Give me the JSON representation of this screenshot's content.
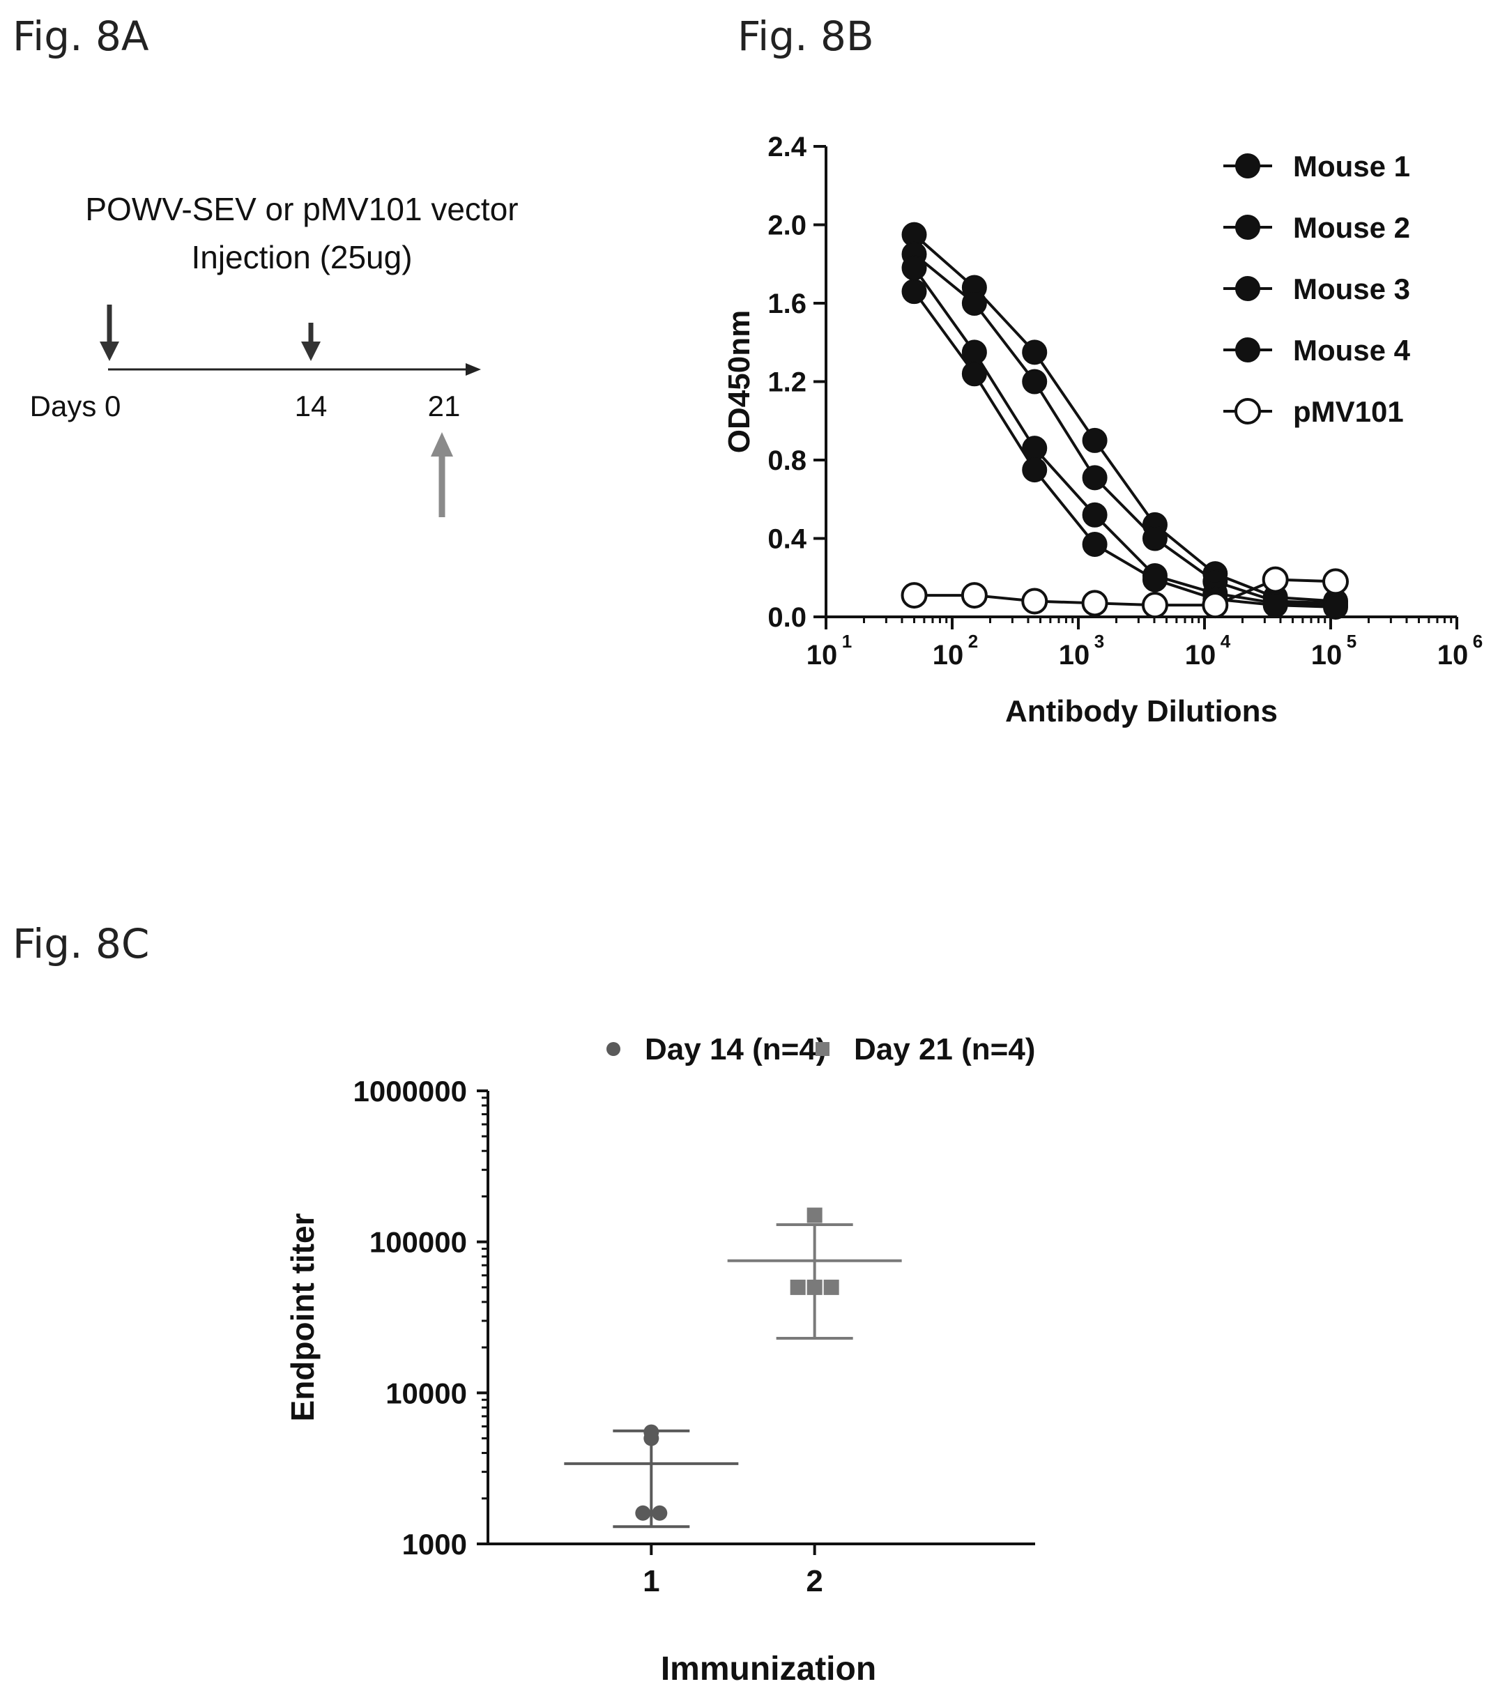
{
  "figure_labels": {
    "a": "Fig. 8A",
    "b": "Fig. 8B",
    "c": "Fig. 8C"
  },
  "panel_a": {
    "title_line1": "POWV-SEV or pMV101 vector",
    "title_line2": "Injection (25ug)",
    "days_label": "Days 0",
    "day_14": "14",
    "day_21": "21",
    "dark_arrow_color": "#333333",
    "grey_arrow_color": "#8a8a8a"
  },
  "chart_data": [
    {
      "type": "line",
      "xlabel": "Antibody Dilutions",
      "ylabel": "OD450nm",
      "xscale": "log",
      "xlim": [
        10,
        1000000
      ],
      "ylim": [
        0,
        2.4
      ],
      "x_tick_bases": [
        "10",
        "10",
        "10",
        "10",
        "10",
        "10"
      ],
      "x_tick_exps": [
        "1",
        "2",
        "3",
        "4",
        "5",
        "6"
      ],
      "y_ticks": [
        "0.0",
        "0.4",
        "0.8",
        "1.2",
        "1.6",
        "2.0",
        "2.4"
      ],
      "legend_position": "top-right",
      "x": [
        50,
        150,
        450,
        1350,
        4050,
        12150,
        36450,
        109350
      ],
      "series": [
        {
          "name": "Mouse 1",
          "marker": "filled-circle",
          "values": [
            1.95,
            1.68,
            1.35,
            0.9,
            0.47,
            0.22,
            0.1,
            0.08
          ]
        },
        {
          "name": "Mouse 2",
          "marker": "filled-circle",
          "values": [
            1.85,
            1.6,
            1.2,
            0.71,
            0.4,
            0.18,
            0.08,
            0.07
          ]
        },
        {
          "name": "Mouse 3",
          "marker": "filled-circle",
          "values": [
            1.78,
            1.35,
            0.86,
            0.52,
            0.21,
            0.12,
            0.07,
            0.06
          ]
        },
        {
          "name": "Mouse 4",
          "marker": "filled-circle",
          "values": [
            1.66,
            1.24,
            0.75,
            0.37,
            0.19,
            0.09,
            0.06,
            0.05
          ]
        },
        {
          "name": "pMV101",
          "marker": "open-circle",
          "values": [
            0.11,
            0.11,
            0.08,
            0.07,
            0.06,
            0.06,
            0.19,
            0.18
          ]
        }
      ]
    },
    {
      "type": "scatter",
      "xlabel": "Immunization",
      "ylabel": "Endpoint titer",
      "yscale": "log",
      "ylim": [
        1000,
        1000000
      ],
      "y_ticks": [
        "1000",
        "10000",
        "100000",
        "1000000"
      ],
      "categories": [
        "1",
        "2"
      ],
      "legend_position": "top",
      "series": [
        {
          "name": "Day 14 (n=4)",
          "marker": "circle",
          "color": "#5a5a5a",
          "category": "1",
          "values": [
            5500,
            5000,
            1600,
            1600
          ],
          "mean": 3400,
          "sd_low": 1300,
          "sd_high": 5600
        },
        {
          "name": "Day 21 (n=4)",
          "marker": "square",
          "color": "#7a7a7a",
          "category": "2",
          "values": [
            150000,
            50000,
            50000,
            50000
          ],
          "mean": 75000,
          "sd_low": 23000,
          "sd_high": 130000
        }
      ]
    }
  ]
}
